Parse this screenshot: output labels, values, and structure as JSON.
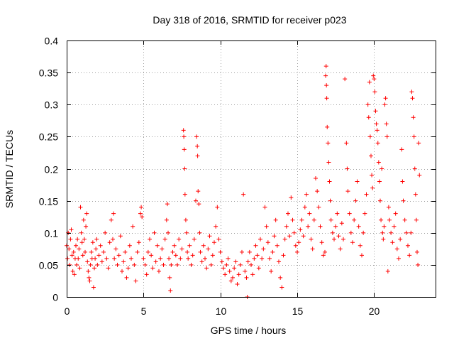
{
  "chart_data": {
    "type": "scatter",
    "title": "Day 318 of 2016, SRMTID for receiver p023",
    "xlabel": "GPS time / hours",
    "ylabel": "SRMTID / TECUs",
    "xlim": [
      0,
      24
    ],
    "ylim": [
      0,
      0.4
    ],
    "xticks": [
      0,
      5,
      10,
      15,
      20
    ],
    "xtick_labels": [
      "0",
      "5",
      "10",
      "15",
      "20"
    ],
    "yticks": [
      0,
      0.05,
      0.1,
      0.15,
      0.2,
      0.25,
      0.3,
      0.35,
      0.4
    ],
    "ytick_labels": [
      "0",
      "0.05",
      "0.1",
      "0.15",
      "0.2",
      "0.25",
      "0.3",
      "0.35",
      "0.4"
    ],
    "grid": true,
    "marker": "plus",
    "color": "#ff0000",
    "points": [
      [
        0.0,
        0.08
      ],
      [
        0.05,
        0.06
      ],
      [
        0.1,
        0.1
      ],
      [
        0.15,
        0.075
      ],
      [
        0.2,
        0.05
      ],
      [
        0.25,
        0.09
      ],
      [
        0.3,
        0.105
      ],
      [
        0.35,
        0.065
      ],
      [
        0.4,
        0.04
      ],
      [
        0.45,
        0.07
      ],
      [
        0.5,
        0.035
      ],
      [
        0.55,
        0.06
      ],
      [
        0.6,
        0.08
      ],
      [
        0.65,
        0.05
      ],
      [
        0.7,
        0.09
      ],
      [
        0.75,
        0.06
      ],
      [
        0.8,
        0.075
      ],
      [
        0.85,
        0.045
      ],
      [
        0.9,
        0.14
      ],
      [
        0.95,
        0.1
      ],
      [
        1.0,
        0.085
      ],
      [
        1.05,
        0.065
      ],
      [
        1.1,
        0.12
      ],
      [
        1.15,
        0.09
      ],
      [
        1.2,
        0.07
      ],
      [
        1.25,
        0.11
      ],
      [
        1.3,
        0.13
      ],
      [
        1.35,
        0.055
      ],
      [
        1.4,
        0.04
      ],
      [
        1.45,
        0.03
      ],
      [
        1.5,
        0.025
      ],
      [
        1.55,
        0.05
      ],
      [
        1.6,
        0.07
      ],
      [
        1.65,
        0.06
      ],
      [
        1.7,
        0.085
      ],
      [
        1.75,
        0.015
      ],
      [
        1.8,
        0.045
      ],
      [
        1.85,
        0.06
      ],
      [
        1.9,
        0.075
      ],
      [
        1.95,
        0.09
      ],
      [
        2.0,
        0.05
      ],
      [
        2.1,
        0.065
      ],
      [
        2.2,
        0.08
      ],
      [
        2.3,
        0.055
      ],
      [
        2.4,
        0.07
      ],
      [
        2.5,
        0.1
      ],
      [
        2.6,
        0.06
      ],
      [
        2.7,
        0.045
      ],
      [
        2.8,
        0.085
      ],
      [
        2.9,
        0.12
      ],
      [
        3.0,
        0.09
      ],
      [
        3.05,
        0.13
      ],
      [
        3.1,
        0.06
      ],
      [
        3.2,
        0.075
      ],
      [
        3.3,
        0.05
      ],
      [
        3.4,
        0.065
      ],
      [
        3.5,
        0.095
      ],
      [
        3.6,
        0.04
      ],
      [
        3.7,
        0.055
      ],
      [
        3.8,
        0.07
      ],
      [
        3.9,
        0.03
      ],
      [
        4.0,
        0.045
      ],
      [
        4.1,
        0.08
      ],
      [
        4.2,
        0.06
      ],
      [
        4.3,
        0.11
      ],
      [
        4.4,
        0.05
      ],
      [
        4.5,
        0.025
      ],
      [
        4.6,
        0.07
      ],
      [
        4.7,
        0.085
      ],
      [
        4.8,
        0.13
      ],
      [
        4.85,
        0.14
      ],
      [
        4.9,
        0.125
      ],
      [
        5.0,
        0.06
      ],
      [
        5.1,
        0.05
      ],
      [
        5.2,
        0.035
      ],
      [
        5.3,
        0.07
      ],
      [
        5.4,
        0.09
      ],
      [
        5.5,
        0.065
      ],
      [
        5.6,
        0.045
      ],
      [
        5.7,
        0.1
      ],
      [
        5.8,
        0.055
      ],
      [
        5.9,
        0.08
      ],
      [
        6.0,
        0.04
      ],
      [
        6.1,
        0.06
      ],
      [
        6.2,
        0.075
      ],
      [
        6.3,
        0.05
      ],
      [
        6.4,
        0.09
      ],
      [
        6.5,
        0.12
      ],
      [
        6.55,
        0.145
      ],
      [
        6.6,
        0.1
      ],
      [
        6.65,
        0.06
      ],
      [
        6.7,
        0.03
      ],
      [
        6.75,
        0.01
      ],
      [
        6.8,
        0.05
      ],
      [
        6.9,
        0.07
      ],
      [
        7.0,
        0.08
      ],
      [
        7.1,
        0.065
      ],
      [
        7.2,
        0.05
      ],
      [
        7.3,
        0.09
      ],
      [
        7.4,
        0.06
      ],
      [
        7.5,
        0.075
      ],
      [
        7.6,
        0.26
      ],
      [
        7.62,
        0.25
      ],
      [
        7.65,
        0.23
      ],
      [
        7.68,
        0.2
      ],
      [
        7.7,
        0.16
      ],
      [
        7.75,
        0.12
      ],
      [
        7.8,
        0.1
      ],
      [
        7.85,
        0.07
      ],
      [
        7.9,
        0.06
      ],
      [
        8.0,
        0.08
      ],
      [
        8.1,
        0.05
      ],
      [
        8.2,
        0.065
      ],
      [
        8.3,
        0.09
      ],
      [
        8.4,
        0.15
      ],
      [
        8.45,
        0.25
      ],
      [
        8.5,
        0.235
      ],
      [
        8.52,
        0.22
      ],
      [
        8.55,
        0.165
      ],
      [
        8.6,
        0.145
      ],
      [
        8.65,
        0.1
      ],
      [
        8.7,
        0.07
      ],
      [
        8.8,
        0.055
      ],
      [
        8.9,
        0.08
      ],
      [
        9.0,
        0.06
      ],
      [
        9.1,
        0.045
      ],
      [
        9.2,
        0.075
      ],
      [
        9.3,
        0.095
      ],
      [
        9.4,
        0.05
      ],
      [
        9.5,
        0.065
      ],
      [
        9.6,
        0.085
      ],
      [
        9.7,
        0.11
      ],
      [
        9.8,
        0.14
      ],
      [
        9.9,
        0.09
      ],
      [
        10.0,
        0.07
      ],
      [
        10.1,
        0.055
      ],
      [
        10.2,
        0.045
      ],
      [
        10.3,
        0.035
      ],
      [
        10.4,
        0.05
      ],
      [
        10.5,
        0.06
      ],
      [
        10.6,
        0.04
      ],
      [
        10.7,
        0.025
      ],
      [
        10.8,
        0.03
      ],
      [
        10.9,
        0.045
      ],
      [
        11.0,
        0.055
      ],
      [
        11.1,
        0.02
      ],
      [
        11.2,
        0.035
      ],
      [
        11.3,
        0.05
      ],
      [
        11.4,
        0.07
      ],
      [
        11.5,
        0.16
      ],
      [
        11.6,
        0.04
      ],
      [
        11.7,
        0.03
      ],
      [
        11.75,
        0.0
      ],
      [
        11.8,
        0.055
      ],
      [
        11.9,
        0.07
      ],
      [
        12.0,
        0.05
      ],
      [
        12.1,
        0.035
      ],
      [
        12.2,
        0.06
      ],
      [
        12.3,
        0.08
      ],
      [
        12.4,
        0.065
      ],
      [
        12.5,
        0.045
      ],
      [
        12.6,
        0.09
      ],
      [
        12.7,
        0.06
      ],
      [
        12.8,
        0.075
      ],
      [
        12.9,
        0.14
      ],
      [
        13.0,
        0.11
      ],
      [
        13.1,
        0.085
      ],
      [
        13.2,
        0.06
      ],
      [
        13.3,
        0.04
      ],
      [
        13.4,
        0.07
      ],
      [
        13.5,
        0.095
      ],
      [
        13.6,
        0.12
      ],
      [
        13.7,
        0.08
      ],
      [
        13.8,
        0.055
      ],
      [
        13.9,
        0.03
      ],
      [
        14.0,
        0.015
      ],
      [
        14.1,
        0.065
      ],
      [
        14.2,
        0.09
      ],
      [
        14.3,
        0.11
      ],
      [
        14.4,
        0.13
      ],
      [
        14.5,
        0.095
      ],
      [
        14.6,
        0.155
      ],
      [
        14.7,
        0.12
      ],
      [
        14.8,
        0.1
      ],
      [
        14.9,
        0.08
      ],
      [
        15.0,
        0.07
      ],
      [
        15.1,
        0.085
      ],
      [
        15.2,
        0.105
      ],
      [
        15.3,
        0.12
      ],
      [
        15.4,
        0.095
      ],
      [
        15.5,
        0.14
      ],
      [
        15.6,
        0.16
      ],
      [
        15.7,
        0.11
      ],
      [
        15.8,
        0.13
      ],
      [
        15.9,
        0.09
      ],
      [
        16.0,
        0.075
      ],
      [
        16.1,
        0.12
      ],
      [
        16.2,
        0.185
      ],
      [
        16.3,
        0.165
      ],
      [
        16.4,
        0.14
      ],
      [
        16.5,
        0.11
      ],
      [
        16.6,
        0.085
      ],
      [
        16.7,
        0.065
      ],
      [
        16.8,
        0.07
      ],
      [
        16.85,
        0.345
      ],
      [
        16.88,
        0.36
      ],
      [
        16.9,
        0.33
      ],
      [
        16.92,
        0.31
      ],
      [
        16.95,
        0.265
      ],
      [
        17.0,
        0.24
      ],
      [
        17.05,
        0.21
      ],
      [
        17.1,
        0.18
      ],
      [
        17.15,
        0.15
      ],
      [
        17.2,
        0.12
      ],
      [
        17.3,
        0.1
      ],
      [
        17.4,
        0.09
      ],
      [
        17.5,
        0.11
      ],
      [
        17.6,
        0.13
      ],
      [
        17.7,
        0.095
      ],
      [
        17.8,
        0.075
      ],
      [
        17.9,
        0.115
      ],
      [
        18.0,
        0.09
      ],
      [
        18.1,
        0.34
      ],
      [
        18.2,
        0.24
      ],
      [
        18.25,
        0.2
      ],
      [
        18.3,
        0.165
      ],
      [
        18.4,
        0.13
      ],
      [
        18.5,
        0.1
      ],
      [
        18.6,
        0.085
      ],
      [
        18.7,
        0.12
      ],
      [
        18.8,
        0.15
      ],
      [
        18.9,
        0.18
      ],
      [
        19.0,
        0.11
      ],
      [
        19.1,
        0.08
      ],
      [
        19.2,
        0.065
      ],
      [
        19.3,
        0.1
      ],
      [
        19.4,
        0.13
      ],
      [
        19.5,
        0.16
      ],
      [
        19.6,
        0.3
      ],
      [
        19.65,
        0.28
      ],
      [
        19.7,
        0.335
      ],
      [
        19.75,
        0.25
      ],
      [
        19.8,
        0.22
      ],
      [
        19.85,
        0.19
      ],
      [
        19.9,
        0.17
      ],
      [
        19.95,
        0.345
      ],
      [
        20.0,
        0.34
      ],
      [
        20.05,
        0.32
      ],
      [
        20.1,
        0.29
      ],
      [
        20.15,
        0.27
      ],
      [
        20.2,
        0.26
      ],
      [
        20.25,
        0.24
      ],
      [
        20.3,
        0.21
      ],
      [
        20.35,
        0.18
      ],
      [
        20.4,
        0.15
      ],
      [
        20.45,
        0.12
      ],
      [
        20.5,
        0.2
      ],
      [
        20.55,
        0.1
      ],
      [
        20.6,
        0.09
      ],
      [
        20.65,
        0.11
      ],
      [
        20.7,
        0.3
      ],
      [
        20.75,
        0.31
      ],
      [
        20.8,
        0.27
      ],
      [
        20.85,
        0.25
      ],
      [
        20.9,
        0.04
      ],
      [
        20.95,
        0.14
      ],
      [
        21.0,
        0.12
      ],
      [
        21.1,
        0.1
      ],
      [
        21.2,
        0.085
      ],
      [
        21.3,
        0.11
      ],
      [
        21.4,
        0.13
      ],
      [
        21.5,
        0.075
      ],
      [
        21.6,
        0.06
      ],
      [
        21.7,
        0.09
      ],
      [
        21.8,
        0.23
      ],
      [
        21.85,
        0.18
      ],
      [
        21.9,
        0.15
      ],
      [
        22.0,
        0.12
      ],
      [
        22.1,
        0.1
      ],
      [
        22.2,
        0.08
      ],
      [
        22.3,
        0.065
      ],
      [
        22.4,
        0.1
      ],
      [
        22.45,
        0.32
      ],
      [
        22.5,
        0.31
      ],
      [
        22.55,
        0.28
      ],
      [
        22.6,
        0.25
      ],
      [
        22.65,
        0.2
      ],
      [
        22.7,
        0.16
      ],
      [
        22.75,
        0.12
      ],
      [
        22.8,
        0.07
      ],
      [
        22.85,
        0.05
      ],
      [
        22.9,
        0.24
      ],
      [
        22.95,
        0.19
      ]
    ]
  }
}
